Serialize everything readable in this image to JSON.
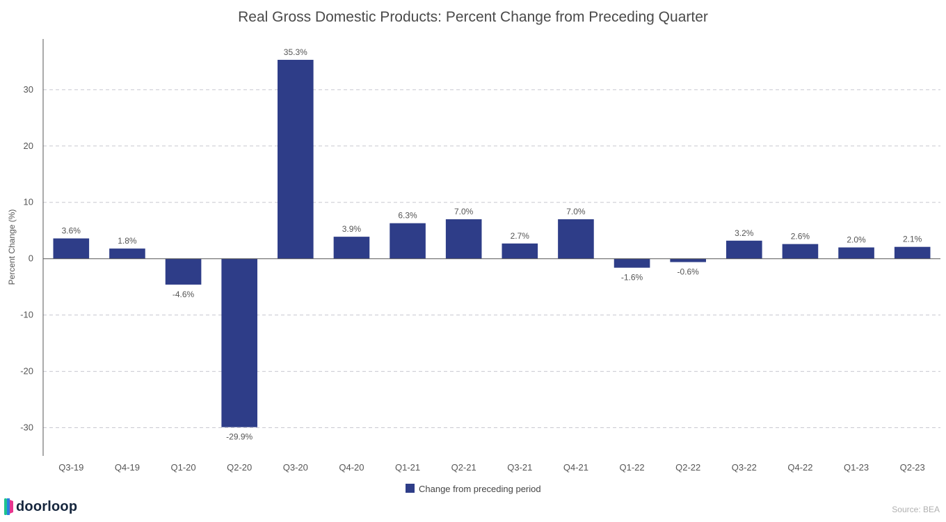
{
  "brand": {
    "name": "doorloop",
    "colors": [
      "#1ec48f",
      "#2b7fe0",
      "#e8368f",
      "#16263d"
    ]
  },
  "source": "Source: BEA",
  "colors": {
    "bar": "#2e3d88",
    "grid": "#c8c8d0",
    "axis": "#555555"
  },
  "chart_data": {
    "type": "bar",
    "title": "Real Gross Domestic Products: Percent Change from Preceding Quarter",
    "xlabel": "",
    "ylabel": "Percent Change (%)",
    "ylim": [
      -35,
      39
    ],
    "yticks": [
      30,
      20,
      10,
      0,
      -10,
      -20,
      -30
    ],
    "grid": true,
    "legend": {
      "position": "bottom-center",
      "entries": [
        "Change from preceding period"
      ]
    },
    "categories": [
      "Q3-19",
      "Q4-19",
      "Q1-20",
      "Q2-20",
      "Q3-20",
      "Q4-20",
      "Q1-21",
      "Q2-21",
      "Q3-21",
      "Q4-21",
      "Q1-22",
      "Q2-22",
      "Q3-22",
      "Q4-22",
      "Q1-23",
      "Q2-23"
    ],
    "series": [
      {
        "name": "Change from preceding period",
        "values": [
          3.6,
          1.8,
          -4.6,
          -29.9,
          35.3,
          3.9,
          6.3,
          7.0,
          2.7,
          7.0,
          -1.6,
          -0.6,
          3.2,
          2.6,
          2.0,
          2.1
        ],
        "labels": [
          "3.6%",
          "1.8%",
          "-4.6%",
          "-29.9%",
          "35.3%",
          "3.9%",
          "6.3%",
          "7.0%",
          "2.7%",
          "7.0%",
          "-1.6%",
          "-0.6%",
          "3.2%",
          "2.6%",
          "2.0%",
          "2.1%"
        ]
      }
    ]
  }
}
